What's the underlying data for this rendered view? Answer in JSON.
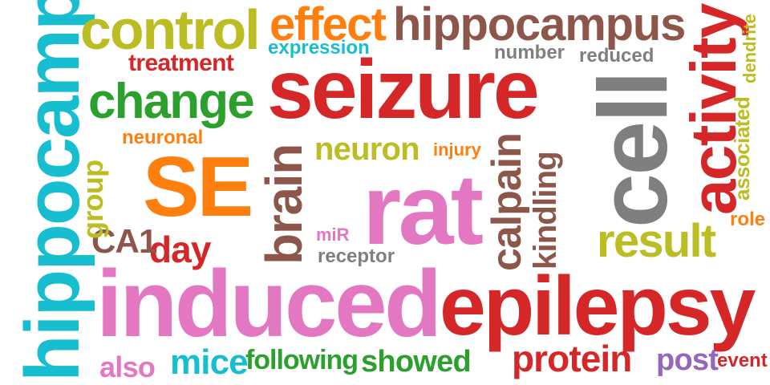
{
  "words": [
    {
      "text": "seizure",
      "color": "#d62728"
    },
    {
      "text": "induced",
      "color": "#e377c2"
    },
    {
      "text": "epilepsy",
      "color": "#d62728"
    },
    {
      "text": "hippocampal",
      "color": "#17becf"
    },
    {
      "text": "rat",
      "color": "#e377c2"
    },
    {
      "text": "cell",
      "color": "#7f7f7f"
    },
    {
      "text": "SE",
      "color": "#ff7f0e"
    },
    {
      "text": "control",
      "color": "#bcbd22"
    },
    {
      "text": "hippocampus",
      "color": "#8c564b"
    },
    {
      "text": "activity",
      "color": "#d62728"
    },
    {
      "text": "change",
      "color": "#2ca02c"
    },
    {
      "text": "effect",
      "color": "#ff7f0e"
    },
    {
      "text": "brain",
      "color": "#8c564b"
    },
    {
      "text": "result",
      "color": "#bcbd22"
    },
    {
      "text": "neuron",
      "color": "#bcbd22"
    },
    {
      "text": "calpain",
      "color": "#8c564b"
    },
    {
      "text": "kindling",
      "color": "#8c564b"
    },
    {
      "text": "protein",
      "color": "#d62728"
    },
    {
      "text": "showed",
      "color": "#2ca02c"
    },
    {
      "text": "following",
      "color": "#2ca02c"
    },
    {
      "text": "mice",
      "color": "#17becf"
    },
    {
      "text": "day",
      "color": "#d62728"
    },
    {
      "text": "CA1",
      "color": "#8c564b"
    },
    {
      "text": "treatment",
      "color": "#d62728"
    },
    {
      "text": "group",
      "color": "#bcbd22"
    },
    {
      "text": "post",
      "color": "#9467bd"
    },
    {
      "text": "also",
      "color": "#e377c2"
    },
    {
      "text": "associated",
      "color": "#bcbd22"
    },
    {
      "text": "expression",
      "color": "#17becf"
    },
    {
      "text": "receptor",
      "color": "#7f7f7f"
    },
    {
      "text": "reduced",
      "color": "#7f7f7f"
    },
    {
      "text": "number",
      "color": "#7f7f7f"
    },
    {
      "text": "neuronal",
      "color": "#ff7f0e"
    },
    {
      "text": "injury",
      "color": "#ff7f0e"
    },
    {
      "text": "dendrite",
      "color": "#bcbd22"
    },
    {
      "text": "role",
      "color": "#ff7f0e"
    },
    {
      "text": "event",
      "color": "#d62728"
    },
    {
      "text": "miR",
      "color": "#e377c2"
    }
  ]
}
